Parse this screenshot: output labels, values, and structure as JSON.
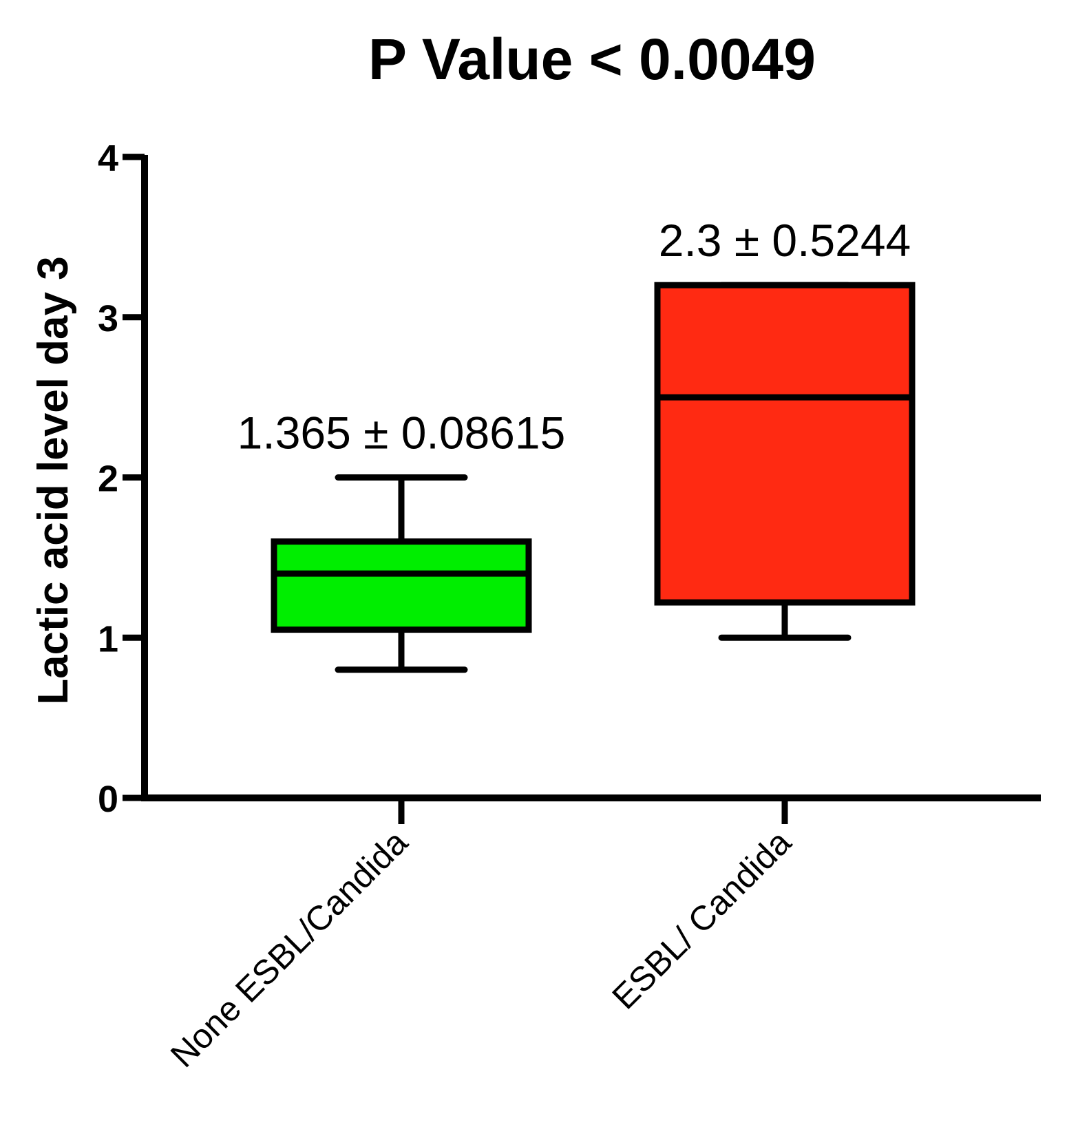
{
  "chart_data": {
    "type": "box",
    "title": "P Value < 0.0049",
    "xlabel": "",
    "ylabel": "Lactic acid level day 3",
    "ylim": [
      0,
      4
    ],
    "yticks": [
      "0",
      "1",
      "2",
      "3",
      "4"
    ],
    "grid": false,
    "categories": [
      "None ESBL/Candida",
      "ESBL/ Candida"
    ],
    "series": [
      {
        "category": "None ESBL/Candida",
        "min": 0.8,
        "q1": 1.05,
        "median": 1.4,
        "q3": 1.6,
        "max": 2.0,
        "color": "#00ee00",
        "annotation": "1.365 ± 0.08615"
      },
      {
        "category": "ESBL/ Candida",
        "min": 1.0,
        "q1": 1.22,
        "median": 2.5,
        "q3": 3.2,
        "max": 3.2,
        "color": "#ff2a12",
        "annotation": "2.3 ± 0.5244"
      }
    ]
  }
}
